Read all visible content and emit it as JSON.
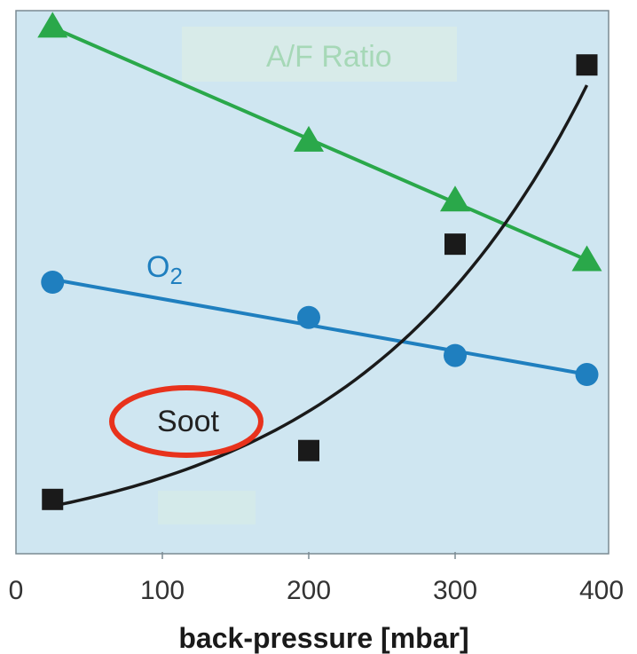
{
  "chart_data": {
    "type": "line",
    "title": "",
    "xlabel": "back-pressure [mbar]",
    "ylabel": "",
    "xlim": [
      0,
      400
    ],
    "x_ticks": [
      "0",
      "100",
      "200",
      "300",
      "400"
    ],
    "y_axis_labels": "none",
    "grid": false,
    "legend": "inline labels on plot",
    "background_color": "#cfe6f1",
    "series": [
      {
        "name": "A/F Ratio",
        "marker": "triangle",
        "color": "#2aa84a",
        "fit": "linear",
        "points": [
          {
            "x": 25,
            "y": 97
          },
          {
            "x": 200,
            "y": 76
          },
          {
            "x": 300,
            "y": 65
          },
          {
            "x": 390,
            "y": 54
          }
        ]
      },
      {
        "name": "O",
        "name_subscript": "2",
        "marker": "circle",
        "color": "#1f7fbf",
        "fit": "linear",
        "points": [
          {
            "x": 25,
            "y": 50
          },
          {
            "x": 200,
            "y": 43.5
          },
          {
            "x": 300,
            "y": 36.5
          },
          {
            "x": 390,
            "y": 33
          }
        ]
      },
      {
        "name": "Soot",
        "marker": "square",
        "color": "#1a1a1a",
        "fit": "exponential",
        "points": [
          {
            "x": 25,
            "y": 10
          },
          {
            "x": 200,
            "y": 19
          },
          {
            "x": 300,
            "y": 57
          },
          {
            "x": 390,
            "y": 90
          }
        ]
      }
    ],
    "annotation": {
      "target_series": "Soot",
      "shape": "ellipse",
      "color": "#e8321c"
    }
  }
}
